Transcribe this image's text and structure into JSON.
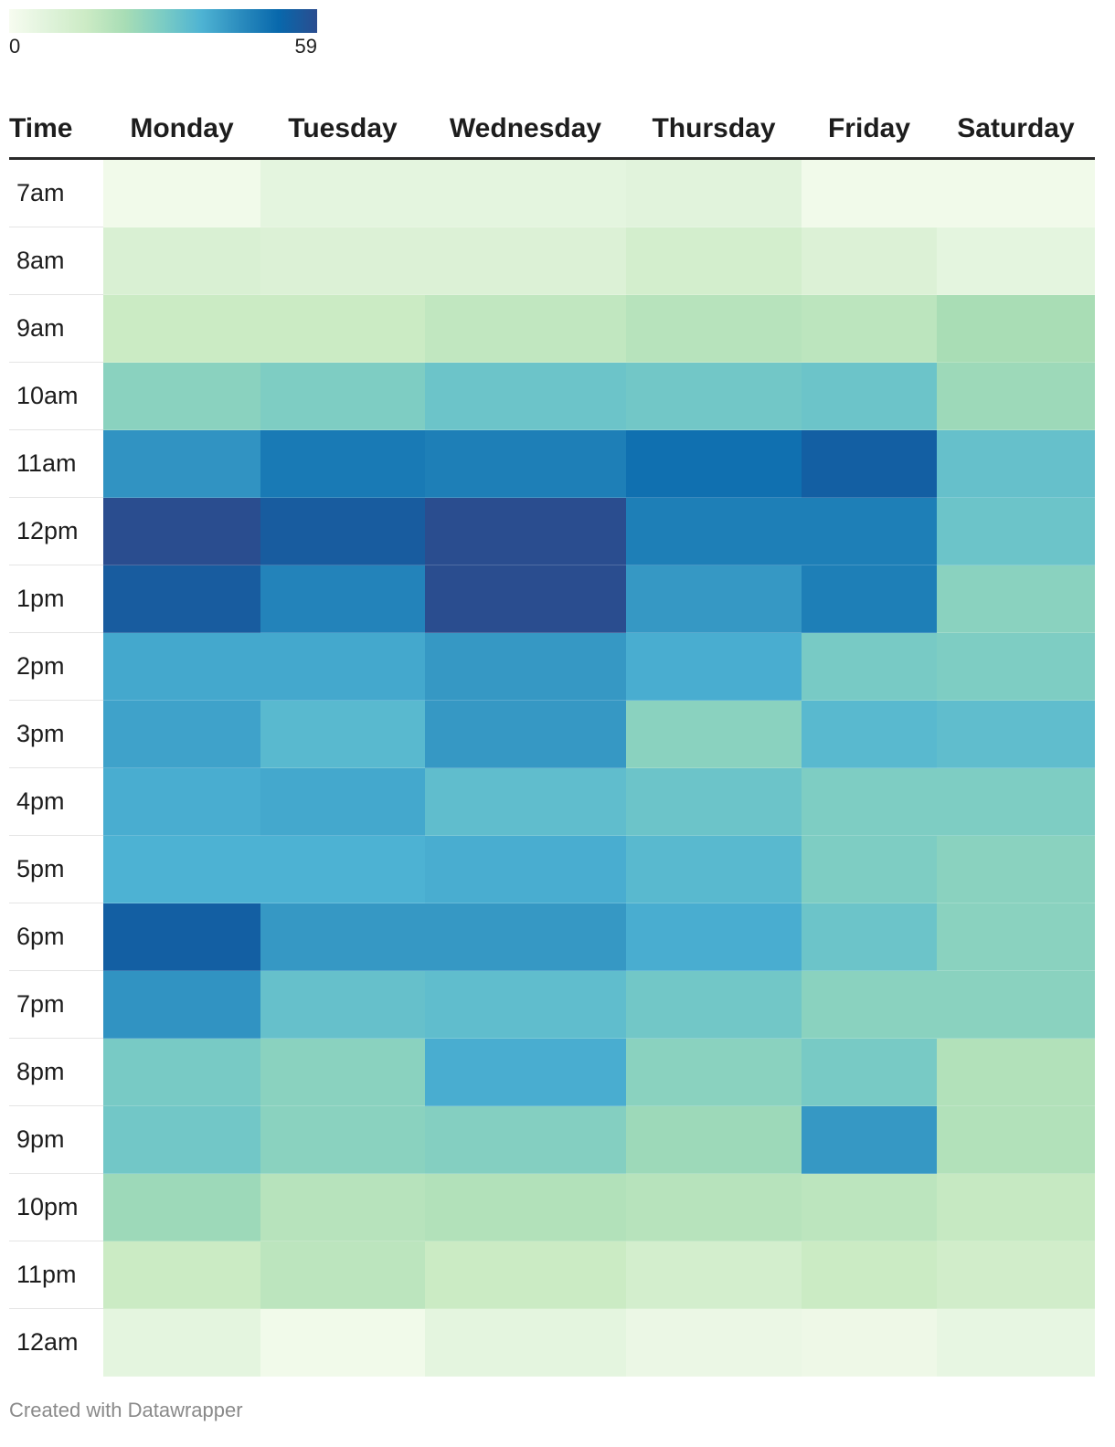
{
  "legend": {
    "min_label": "0",
    "max_label": "59",
    "colors": [
      "#f7fcf0",
      "#e0f3db",
      "#ccebc5",
      "#a8ddb5",
      "#7bccc4",
      "#4eb3d3",
      "#2b8cbe",
      "#0868ac",
      "#2a4d8f"
    ]
  },
  "footer": {
    "text": "Created with Datawrapper"
  },
  "chart_data": {
    "type": "heatmap",
    "row_header": "Time",
    "columns": [
      "Monday",
      "Tuesday",
      "Wednesday",
      "Thursday",
      "Friday",
      "Saturday"
    ],
    "rows": [
      "7am",
      "8am",
      "9am",
      "10am",
      "11am",
      "12pm",
      "1pm",
      "2pm",
      "3pm",
      "4pm",
      "5pm",
      "6pm",
      "7pm",
      "8pm",
      "9pm",
      "10pm",
      "11pm",
      "12am"
    ],
    "values": [
      [
        2,
        6,
        6,
        7,
        2,
        2
      ],
      [
        10,
        9,
        9,
        12,
        9,
        6
      ],
      [
        15,
        15,
        17,
        19,
        18,
        22
      ],
      [
        27,
        29,
        32,
        31,
        32,
        24
      ],
      [
        43,
        48,
        47,
        50,
        54,
        33
      ],
      [
        59,
        55,
        59,
        47,
        47,
        32
      ],
      [
        55,
        46,
        59,
        42,
        47,
        27
      ],
      [
        39,
        39,
        42,
        38,
        30,
        29
      ],
      [
        40,
        35,
        42,
        27,
        35,
        34
      ],
      [
        38,
        39,
        34,
        32,
        29,
        29
      ],
      [
        37,
        37,
        38,
        35,
        29,
        27
      ],
      [
        54,
        42,
        42,
        38,
        32,
        27
      ],
      [
        43,
        33,
        34,
        31,
        27,
        27
      ],
      [
        30,
        27,
        38,
        27,
        30,
        20
      ],
      [
        31,
        27,
        28,
        24,
        42,
        20
      ],
      [
        24,
        19,
        20,
        19,
        18,
        16
      ],
      [
        15,
        18,
        15,
        12,
        15,
        13
      ],
      [
        6,
        2,
        6,
        4,
        3,
        5
      ]
    ],
    "value_range": [
      0,
      59
    ]
  }
}
